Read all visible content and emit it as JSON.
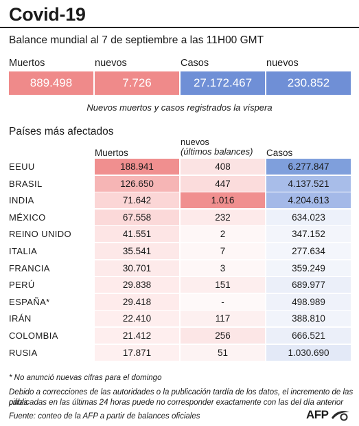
{
  "title": "Covid-19",
  "subtitle": "Balance mundial al 7 de septiembre a las 11H00 GMT",
  "summary": {
    "labels": [
      "Muertos",
      "nuevos",
      "Casos",
      "nuevos"
    ],
    "values": [
      "889.498",
      "7.726",
      "27.172.467",
      "230.852"
    ],
    "colors": [
      "#ef8a8a",
      "#ef8a8a",
      "#6f8fd6",
      "#6f8fd6"
    ],
    "note": "Nuevos muertos y casos registrados la víspera"
  },
  "table": {
    "section_title": "Países más afectados",
    "headers": {
      "deaths": "Muertos",
      "new_line1": "nuevos",
      "new_line2": "(últimos balances)",
      "cases": "Casos"
    },
    "rows": [
      {
        "country": "EEUU",
        "deaths": "188.941",
        "new": "408",
        "cases": "6.277.847",
        "deaths_color": "#f08f8f",
        "new_color": "#fbe3e3",
        "cases_color": "#7f9fdc"
      },
      {
        "country": "BRASIL",
        "deaths": "126.650",
        "new": "447",
        "cases": "4.137.521",
        "deaths_color": "#f6b5b5",
        "new_color": "#fbdcdc",
        "cases_color": "#a8bde9"
      },
      {
        "country": "INDIA",
        "deaths": "71.642",
        "new": "1.016",
        "cases": "4.204.613",
        "deaths_color": "#fbd6d6",
        "new_color": "#f08f8f",
        "cases_color": "#a4b9e8"
      },
      {
        "country": "MÉXICO",
        "deaths": "67.558",
        "new": "232",
        "cases": "634.023",
        "deaths_color": "#fbd9d9",
        "new_color": "#fdeaea",
        "cases_color": "#edf1fa"
      },
      {
        "country": "REINO UNIDO",
        "deaths": "41.551",
        "new": "2",
        "cases": "347.152",
        "deaths_color": "#fde5e5",
        "new_color": "#fef7f7",
        "cases_color": "#f3f5fb"
      },
      {
        "country": "ITALIA",
        "deaths": "35.541",
        "new": "7",
        "cases": "277.634",
        "deaths_color": "#fde8e8",
        "new_color": "#fef7f7",
        "cases_color": "#f4f6fc"
      },
      {
        "country": "FRANCIA",
        "deaths": "30.701",
        "new": "3",
        "cases": "359.249",
        "deaths_color": "#fdeaea",
        "new_color": "#fef7f7",
        "cases_color": "#f2f5fb"
      },
      {
        "country": "PERÚ",
        "deaths": "29.838",
        "new": "151",
        "cases": "689.977",
        "deaths_color": "#feebeb",
        "new_color": "#fdeeee",
        "cases_color": "#ebeff9"
      },
      {
        "country": "ESPAÑA*",
        "deaths": "29.418",
        "new": "-",
        "cases": "498.989",
        "deaths_color": "#feebeb",
        "new_color": "#fef9f9",
        "cases_color": "#eff2fa"
      },
      {
        "country": "IRÁN",
        "deaths": "22.410",
        "new": "117",
        "cases": "388.810",
        "deaths_color": "#feeeee",
        "new_color": "#fdf0f0",
        "cases_color": "#f1f4fb"
      },
      {
        "country": "COLOMBIA",
        "deaths": "21.412",
        "new": "256",
        "cases": "666.521",
        "deaths_color": "#feeeee",
        "new_color": "#fce6e6",
        "cases_color": "#ebeff9"
      },
      {
        "country": "RUSIA",
        "deaths": "17.871",
        "new": "51",
        "cases": "1.030.690",
        "deaths_color": "#fef0f0",
        "new_color": "#fdf3f3",
        "cases_color": "#e3e9f7"
      }
    ]
  },
  "footnotes": {
    "asterisk": "* No anunció nuevas cifras para el domingo",
    "disclaimer_line1": "Debido a correcciones de las autoridades o la publicación tardía de los datos, el incremento de las cifras",
    "disclaimer_line2": "publicadas en las últimas 24 horas puede no corresponder exactamente con las del día anterior",
    "source": "Fuente: conteo de la AFP a partir de balances oficiales"
  },
  "logo": {
    "text": "AFP",
    "icon": "afp-swoosh-icon"
  }
}
